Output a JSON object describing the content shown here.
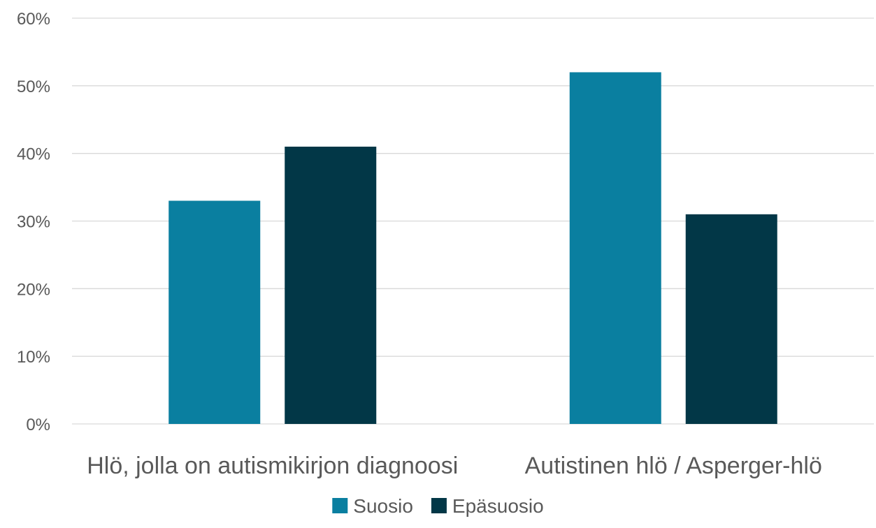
{
  "chart_data": {
    "type": "bar",
    "categories": [
      "Hlö, jolla on autismikirjon diagnoosi",
      "Autistinen hlö / Asperger-hlö"
    ],
    "series": [
      {
        "name": "Suosio",
        "values": [
          33,
          52
        ],
        "color": "#0a7fa0"
      },
      {
        "name": "Epäsuosio",
        "values": [
          41,
          31
        ],
        "color": "#023747"
      }
    ],
    "y_ticks": [
      "0%",
      "10%",
      "20%",
      "30%",
      "40%",
      "50%",
      "60%"
    ],
    "ylim": [
      0,
      60
    ],
    "y_unit": "%",
    "grid": true,
    "legend_position": "bottom"
  }
}
